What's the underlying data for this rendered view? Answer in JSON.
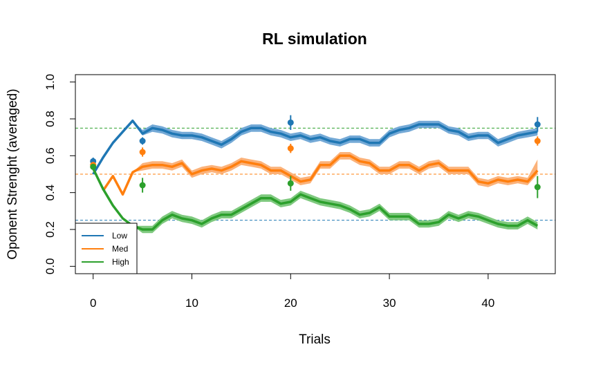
{
  "chart_data": {
    "type": "line",
    "title": "RL simulation",
    "xlabel": "Trials",
    "ylabel": "Oponent Strenght (averaged)",
    "xlim": [
      -1.8,
      46.8
    ],
    "ylim": [
      -0.04,
      1.04
    ],
    "x_ticks": [
      "0",
      "10",
      "20",
      "30",
      "40"
    ],
    "x_tick_values": [
      0,
      10,
      20,
      30,
      40
    ],
    "y_ticks": [
      "0.0",
      "0.2",
      "0.4",
      "0.6",
      "0.8",
      "1.0"
    ],
    "y_tick_values": [
      0.0,
      0.2,
      0.4,
      0.6,
      0.8,
      1.0
    ],
    "legend_position": "bottom-left",
    "reference_lines": [
      {
        "y": 0.75,
        "color": "#2ca02c"
      },
      {
        "y": 0.5,
        "color": "#ff7f0e"
      },
      {
        "y": 0.25,
        "color": "#1f77b4"
      }
    ],
    "series": [
      {
        "name": "Low",
        "color": "#1f77b4",
        "band_color": "#74a9d6",
        "x": [
          0,
          1,
          2,
          3,
          4,
          5,
          6,
          7,
          8,
          9,
          10,
          11,
          12,
          13,
          14,
          15,
          16,
          17,
          18,
          19,
          20,
          21,
          22,
          23,
          24,
          25,
          26,
          27,
          28,
          29,
          30,
          31,
          32,
          33,
          34,
          35,
          36,
          37,
          38,
          39,
          40,
          41,
          42,
          43,
          44,
          45
        ],
        "y": [
          0.5,
          0.59,
          0.67,
          0.73,
          0.79,
          0.72,
          0.75,
          0.74,
          0.72,
          0.71,
          0.71,
          0.7,
          0.68,
          0.66,
          0.69,
          0.73,
          0.75,
          0.75,
          0.73,
          0.72,
          0.7,
          0.71,
          0.69,
          0.7,
          0.68,
          0.67,
          0.69,
          0.69,
          0.67,
          0.67,
          0.72,
          0.74,
          0.75,
          0.77,
          0.77,
          0.77,
          0.74,
          0.73,
          0.7,
          0.71,
          0.71,
          0.67,
          0.69,
          0.71,
          0.72,
          0.73
        ],
        "band_low": [
          0.5,
          0.59,
          0.67,
          0.73,
          0.79,
          0.71,
          0.73,
          0.72,
          0.7,
          0.69,
          0.69,
          0.68,
          0.66,
          0.64,
          0.67,
          0.71,
          0.73,
          0.73,
          0.71,
          0.7,
          0.68,
          0.69,
          0.67,
          0.68,
          0.66,
          0.65,
          0.67,
          0.67,
          0.65,
          0.65,
          0.7,
          0.72,
          0.73,
          0.75,
          0.75,
          0.75,
          0.72,
          0.71,
          0.68,
          0.69,
          0.69,
          0.65,
          0.67,
          0.69,
          0.7,
          0.71
        ],
        "band_high": [
          0.5,
          0.59,
          0.67,
          0.73,
          0.79,
          0.74,
          0.77,
          0.76,
          0.74,
          0.73,
          0.73,
          0.72,
          0.7,
          0.68,
          0.71,
          0.75,
          0.77,
          0.77,
          0.75,
          0.74,
          0.72,
          0.73,
          0.71,
          0.72,
          0.7,
          0.69,
          0.71,
          0.71,
          0.69,
          0.69,
          0.74,
          0.76,
          0.77,
          0.79,
          0.79,
          0.79,
          0.76,
          0.75,
          0.72,
          0.73,
          0.73,
          0.69,
          0.71,
          0.73,
          0.74,
          0.75
        ]
      },
      {
        "name": "Med",
        "color": "#ff7f0e",
        "band_color": "#fbb27a",
        "x": [
          1,
          2,
          3,
          4,
          5,
          6,
          7,
          8,
          9,
          10,
          11,
          12,
          13,
          14,
          15,
          16,
          17,
          18,
          19,
          20,
          21,
          22,
          23,
          24,
          25,
          26,
          27,
          28,
          29,
          30,
          31,
          32,
          33,
          34,
          35,
          36,
          37,
          38,
          39,
          40,
          41,
          42,
          43,
          44,
          45
        ],
        "y": [
          0.41,
          0.49,
          0.39,
          0.51,
          0.54,
          0.55,
          0.55,
          0.54,
          0.56,
          0.5,
          0.52,
          0.53,
          0.52,
          0.54,
          0.57,
          0.56,
          0.55,
          0.52,
          0.52,
          0.49,
          0.46,
          0.47,
          0.55,
          0.55,
          0.6,
          0.6,
          0.57,
          0.56,
          0.52,
          0.52,
          0.55,
          0.55,
          0.52,
          0.55,
          0.56,
          0.52,
          0.52,
          0.52,
          0.46,
          0.45,
          0.47,
          0.46,
          0.47,
          0.46,
          0.52
        ],
        "band_low": [
          0.41,
          0.49,
          0.39,
          0.51,
          0.52,
          0.53,
          0.53,
          0.52,
          0.54,
          0.48,
          0.5,
          0.51,
          0.5,
          0.52,
          0.55,
          0.54,
          0.53,
          0.5,
          0.5,
          0.47,
          0.44,
          0.45,
          0.53,
          0.53,
          0.58,
          0.58,
          0.55,
          0.54,
          0.5,
          0.5,
          0.53,
          0.53,
          0.5,
          0.53,
          0.54,
          0.5,
          0.5,
          0.5,
          0.44,
          0.43,
          0.45,
          0.44,
          0.45,
          0.44,
          0.5
        ],
        "band_high": [
          0.41,
          0.49,
          0.39,
          0.51,
          0.56,
          0.57,
          0.57,
          0.56,
          0.58,
          0.52,
          0.54,
          0.55,
          0.54,
          0.56,
          0.59,
          0.58,
          0.57,
          0.54,
          0.54,
          0.51,
          0.48,
          0.49,
          0.57,
          0.57,
          0.62,
          0.62,
          0.59,
          0.58,
          0.54,
          0.54,
          0.57,
          0.57,
          0.54,
          0.57,
          0.58,
          0.54,
          0.54,
          0.54,
          0.48,
          0.47,
          0.49,
          0.48,
          0.49,
          0.48,
          0.58
        ]
      },
      {
        "name": "High",
        "color": "#2ca02c",
        "band_color": "#7fc97f",
        "x": [
          0,
          1,
          2,
          3,
          4,
          5,
          6,
          7,
          8,
          9,
          10,
          11,
          12,
          13,
          14,
          15,
          16,
          17,
          18,
          19,
          20,
          21,
          22,
          23,
          24,
          25,
          26,
          27,
          28,
          29,
          30,
          31,
          32,
          33,
          34,
          35,
          36,
          37,
          38,
          39,
          40,
          41,
          42,
          43,
          44,
          45
        ],
        "y": [
          0.53,
          0.42,
          0.33,
          0.26,
          0.22,
          0.2,
          0.2,
          0.25,
          0.28,
          0.26,
          0.25,
          0.23,
          0.26,
          0.28,
          0.28,
          0.31,
          0.34,
          0.37,
          0.37,
          0.34,
          0.35,
          0.39,
          0.37,
          0.35,
          0.34,
          0.33,
          0.31,
          0.28,
          0.29,
          0.32,
          0.27,
          0.27,
          0.27,
          0.23,
          0.23,
          0.24,
          0.28,
          0.26,
          0.28,
          0.27,
          0.25,
          0.23,
          0.22,
          0.22,
          0.25,
          0.22
        ],
        "band_low": [
          0.53,
          0.42,
          0.33,
          0.26,
          0.22,
          0.18,
          0.18,
          0.23,
          0.26,
          0.24,
          0.23,
          0.21,
          0.24,
          0.26,
          0.26,
          0.29,
          0.32,
          0.35,
          0.35,
          0.32,
          0.33,
          0.37,
          0.35,
          0.33,
          0.32,
          0.31,
          0.29,
          0.26,
          0.27,
          0.3,
          0.25,
          0.25,
          0.25,
          0.21,
          0.21,
          0.22,
          0.26,
          0.24,
          0.26,
          0.25,
          0.23,
          0.21,
          0.2,
          0.2,
          0.23,
          0.2
        ],
        "band_high": [
          0.53,
          0.42,
          0.33,
          0.26,
          0.22,
          0.22,
          0.22,
          0.27,
          0.3,
          0.28,
          0.27,
          0.25,
          0.28,
          0.3,
          0.3,
          0.33,
          0.36,
          0.39,
          0.39,
          0.36,
          0.37,
          0.41,
          0.39,
          0.37,
          0.36,
          0.35,
          0.33,
          0.3,
          0.31,
          0.34,
          0.29,
          0.29,
          0.29,
          0.25,
          0.25,
          0.26,
          0.3,
          0.28,
          0.3,
          0.29,
          0.27,
          0.25,
          0.24,
          0.24,
          0.27,
          0.24
        ]
      }
    ],
    "observed_points": [
      {
        "series": "Low",
        "x": [
          0,
          5,
          20,
          45
        ],
        "y": [
          0.57,
          0.68,
          0.78,
          0.77
        ],
        "err": [
          0.02,
          0.02,
          0.04,
          0.04
        ]
      },
      {
        "series": "Med",
        "x": [
          0,
          5,
          20,
          45
        ],
        "y": [
          0.55,
          0.62,
          0.64,
          0.68
        ],
        "err": [
          0.015,
          0.025,
          0.025,
          0.025
        ]
      },
      {
        "series": "High",
        "x": [
          0,
          5,
          20,
          45
        ],
        "y": [
          0.54,
          0.44,
          0.45,
          0.43
        ],
        "err": [
          0.015,
          0.04,
          0.04,
          0.06
        ]
      }
    ]
  }
}
